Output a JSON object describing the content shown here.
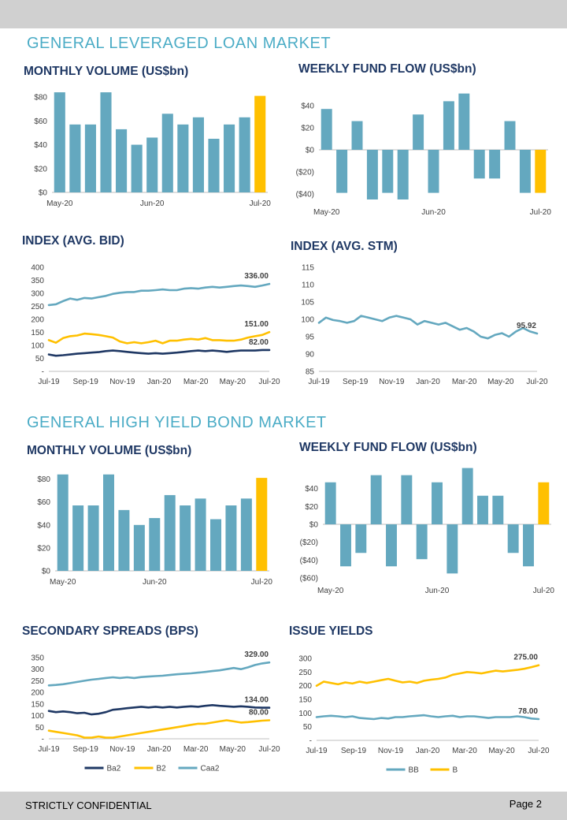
{
  "page": {
    "footer_left": "STRICTLY CONFIDENTIAL",
    "footer_right": "Page 2",
    "colors": {
      "teal": "#64a8bf",
      "gold": "#ffc000",
      "navy": "#1f3864",
      "section": "#4bacc6",
      "header_bar": "#d0d0d0"
    }
  },
  "sections": [
    {
      "title": "GENERAL LEVERAGED LOAN MARKET"
    },
    {
      "title": "GENERAL HIGH YIELD BOND MARKET"
    }
  ],
  "chart_data": [
    {
      "id": "lev-monthly-volume",
      "type": "bar",
      "title": "MONTHLY VOLUME (US$bn)",
      "x_tick_labels": [
        "May-20",
        "Jun-20",
        "Jul-20"
      ],
      "values": [
        84,
        57,
        57,
        84,
        53,
        40,
        46,
        66,
        57,
        63,
        45,
        57,
        63,
        81
      ],
      "highlight_last": true,
      "ylim": [
        0,
        90
      ],
      "y_ticks": [
        0,
        20,
        40,
        60,
        80
      ],
      "y_tick_labels": [
        "$0",
        "$20",
        "$40",
        "$60",
        "$80"
      ]
    },
    {
      "id": "lev-weekly-fund-flow",
      "type": "bar",
      "title": "WEEKLY FUND FLOW (US$bn)",
      "x_tick_labels": [
        "May-20",
        "Jun-20",
        "Jul-20"
      ],
      "values": [
        37,
        -39,
        26,
        -45,
        -39,
        -45,
        32,
        -39,
        44,
        51,
        -26,
        -26,
        26,
        -39,
        -39
      ],
      "highlight_last": true,
      "ylim": [
        -45,
        55
      ],
      "y_ticks": [
        -40,
        -20,
        0,
        20,
        40
      ],
      "y_tick_labels": [
        "($40)",
        "($20)",
        "$0",
        "$20",
        "$40"
      ]
    },
    {
      "id": "lev-index-avg-bid",
      "type": "line",
      "title": "INDEX (AVG. BID)",
      "x_tick_labels": [
        "Jul-19",
        "Sep-19",
        "Nov-19",
        "Jan-20",
        "Mar-20",
        "May-20",
        "Jul-20"
      ],
      "ylim": [
        0,
        400
      ],
      "y_ticks": [
        0,
        50,
        100,
        150,
        200,
        250,
        300,
        350,
        400
      ],
      "y_tick_labels": [
        "-",
        "50",
        "100",
        "150",
        "200",
        "250",
        "300",
        "350",
        "400"
      ],
      "series": [
        {
          "color": "teal",
          "end_label": "336.00",
          "values": [
            255,
            258,
            270,
            280,
            275,
            282,
            280,
            285,
            290,
            298,
            302,
            305,
            305,
            310,
            310,
            312,
            315,
            312,
            312,
            318,
            320,
            318,
            322,
            325,
            322,
            325,
            328,
            330,
            328,
            325,
            330,
            336
          ]
        },
        {
          "color": "gold",
          "end_label": "151.00",
          "values": [
            120,
            110,
            128,
            135,
            138,
            145,
            143,
            140,
            135,
            130,
            115,
            108,
            112,
            108,
            112,
            118,
            108,
            118,
            118,
            122,
            125,
            122,
            128,
            120,
            120,
            118,
            118,
            122,
            130,
            135,
            140,
            151
          ]
        },
        {
          "color": "navy",
          "end_label": "82.00",
          "values": [
            65,
            60,
            62,
            65,
            68,
            70,
            72,
            74,
            78,
            80,
            78,
            75,
            72,
            70,
            68,
            70,
            68,
            70,
            72,
            75,
            78,
            80,
            78,
            80,
            78,
            75,
            78,
            80,
            80,
            80,
            82,
            82
          ]
        }
      ]
    },
    {
      "id": "lev-index-avg-stm",
      "type": "line",
      "title": "INDEX (AVG. STM)",
      "x_tick_labels": [
        "Jul-19",
        "Sep-19",
        "Nov-19",
        "Jan-20",
        "Mar-20",
        "May-20",
        "Jul-20"
      ],
      "ylim": [
        85,
        115
      ],
      "y_ticks": [
        85,
        90,
        95,
        100,
        105,
        110,
        115
      ],
      "y_tick_labels": [
        "85",
        "90",
        "95",
        "100",
        "105",
        "110",
        "115"
      ],
      "series": [
        {
          "color": "teal",
          "end_label": "95.92",
          "values": [
            99,
            100.5,
            99.8,
            99.5,
            99,
            99.5,
            101,
            100.5,
            100,
            99.5,
            100.5,
            101,
            100.5,
            100,
            98.5,
            99.5,
            99,
            98.5,
            99,
            98,
            97,
            97.5,
            96.5,
            95,
            94.5,
            95.5,
            96,
            95,
            96.5,
            97.5,
            96.5,
            95.92
          ]
        }
      ]
    },
    {
      "id": "hy-monthly-volume",
      "type": "bar",
      "title": "MONTHLY VOLUME (US$bn)",
      "x_tick_labels": [
        "May-20",
        "Jun-20",
        "Jul-20"
      ],
      "values": [
        84,
        57,
        57,
        84,
        53,
        40,
        46,
        66,
        57,
        63,
        45,
        57,
        63,
        81
      ],
      "highlight_last": true,
      "ylim": [
        0,
        90
      ],
      "y_ticks": [
        0,
        20,
        40,
        60,
        80
      ],
      "y_tick_labels": [
        "$0",
        "$20",
        "$40",
        "$60",
        "$80"
      ]
    },
    {
      "id": "hy-weekly-fund-flow",
      "type": "bar",
      "title": "WEEKLY FUND FLOW (US$bn)",
      "x_tick_labels": [
        "May-20",
        "Jun-20",
        "Jul-20"
      ],
      "values": [
        47,
        -47,
        -32,
        55,
        -47,
        55,
        -39,
        47,
        -55,
        63,
        32,
        32,
        -32,
        -47,
        47
      ],
      "highlight_last": true,
      "ylim": [
        -60,
        60
      ],
      "y_ticks": [
        -60,
        -40,
        -20,
        0,
        20,
        40
      ],
      "y_tick_labels": [
        "($60)",
        "($40)",
        "($20)",
        "$0",
        "$20",
        "$40"
      ]
    },
    {
      "id": "hy-secondary-spreads",
      "type": "line",
      "title": "SECONDARY SPREADS (BPS)",
      "x_tick_labels": [
        "Jul-19",
        "Sep-19",
        "Nov-19",
        "Jan-20",
        "Mar-20",
        "May-20",
        "Jul-20"
      ],
      "ylim": [
        0,
        350
      ],
      "y_ticks": [
        0,
        50,
        100,
        150,
        200,
        250,
        300,
        350
      ],
      "y_tick_labels": [
        "-",
        "50",
        "100",
        "150",
        "200",
        "250",
        "300",
        "350"
      ],
      "legend": [
        "Ba2",
        "B2",
        "Caa2"
      ],
      "series": [
        {
          "name": "Ba2",
          "color": "navy",
          "end_label": "134.00",
          "values": [
            120,
            115,
            118,
            115,
            110,
            112,
            105,
            108,
            115,
            125,
            128,
            132,
            135,
            138,
            135,
            138,
            135,
            138,
            135,
            138,
            140,
            138,
            142,
            145,
            142,
            140,
            138,
            140,
            138,
            135,
            134,
            134
          ]
        },
        {
          "name": "B2",
          "color": "gold",
          "end_label": "80.00",
          "values": [
            35,
            30,
            25,
            20,
            15,
            5,
            5,
            10,
            5,
            5,
            10,
            15,
            20,
            25,
            30,
            35,
            40,
            45,
            50,
            55,
            60,
            65,
            65,
            70,
            75,
            80,
            75,
            70,
            72,
            75,
            78,
            80
          ]
        },
        {
          "name": "Caa2",
          "color": "teal",
          "end_label": "329.00",
          "values": [
            230,
            232,
            235,
            240,
            245,
            250,
            255,
            258,
            262,
            265,
            262,
            265,
            262,
            266,
            268,
            270,
            272,
            275,
            278,
            280,
            282,
            285,
            288,
            292,
            295,
            300,
            305,
            300,
            308,
            318,
            325,
            329
          ]
        }
      ]
    },
    {
      "id": "hy-issue-yields",
      "type": "line",
      "title": "ISSUE YIELDS",
      "x_tick_labels": [
        "Jul-19",
        "Sep-19",
        "Nov-19",
        "Jan-20",
        "Mar-20",
        "May-20",
        "Jul-20"
      ],
      "ylim": [
        0,
        300
      ],
      "y_ticks": [
        0,
        50,
        100,
        150,
        200,
        250,
        300
      ],
      "y_tick_labels": [
        "-",
        "50",
        "100",
        "150",
        "200",
        "250",
        "300"
      ],
      "legend": [
        "BB",
        "B"
      ],
      "series": [
        {
          "name": "BB",
          "color": "teal",
          "end_label": "78.00",
          "values": [
            85,
            88,
            90,
            88,
            85,
            88,
            82,
            80,
            78,
            82,
            80,
            85,
            85,
            88,
            90,
            92,
            88,
            85,
            88,
            90,
            85,
            88,
            88,
            85,
            82,
            85,
            85,
            85,
            88,
            85,
            80,
            78
          ]
        },
        {
          "name": "B",
          "color": "gold",
          "end_label": "275.00",
          "values": [
            200,
            215,
            210,
            205,
            212,
            208,
            215,
            210,
            215,
            220,
            225,
            218,
            212,
            215,
            210,
            218,
            222,
            225,
            230,
            240,
            245,
            250,
            248,
            245,
            250,
            255,
            252,
            255,
            258,
            262,
            268,
            275
          ]
        }
      ]
    }
  ]
}
